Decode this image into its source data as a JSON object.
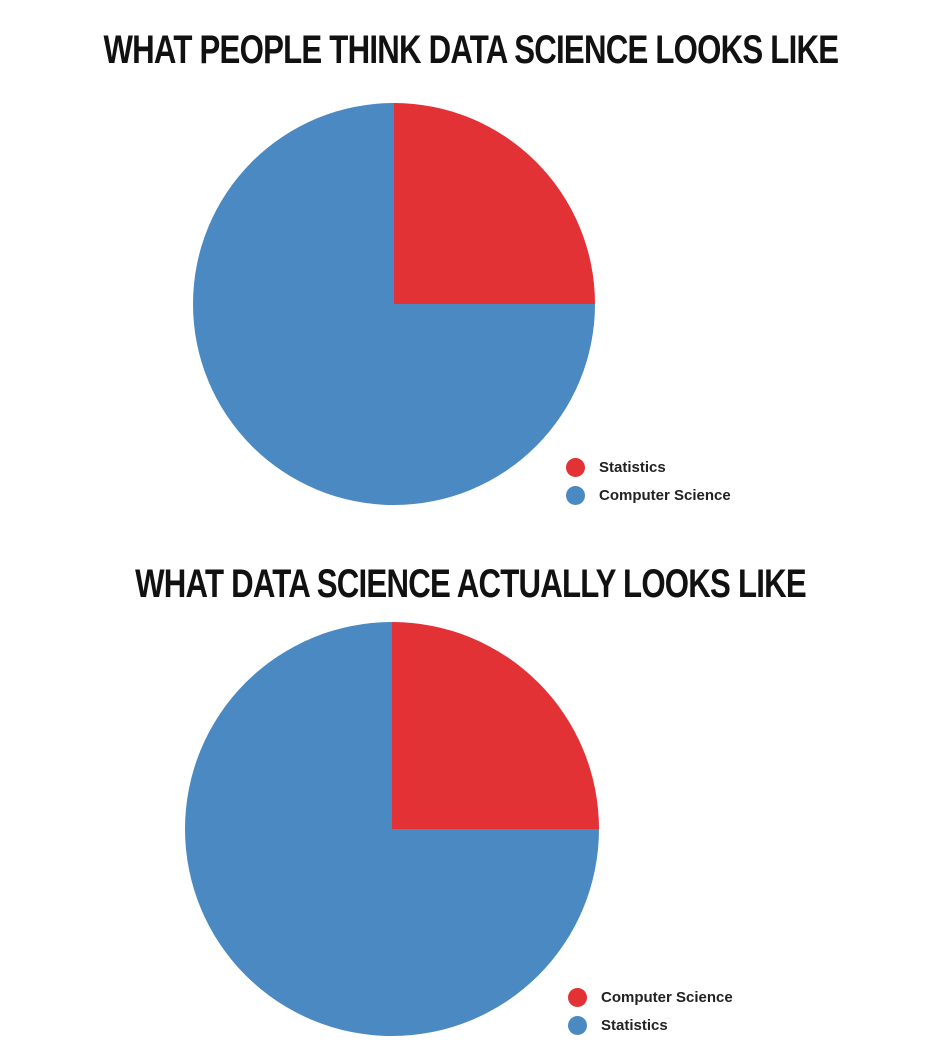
{
  "chart_data": [
    {
      "type": "pie",
      "title": "WHAT PEOPLE THINK DATA SCIENCE LOOKS LIKE",
      "labels": [
        "Statistics",
        "Computer Science"
      ],
      "values": [
        25,
        75
      ],
      "colors": [
        "#e23236",
        "#4a89c2"
      ],
      "start_angle_deg": 0,
      "direction": "clockwise",
      "legend_position": "bottom-right"
    },
    {
      "type": "pie",
      "title": "WHAT DATA SCIENCE ACTUALLY LOOKS LIKE",
      "labels": [
        "Computer Science",
        "Statistics"
      ],
      "values": [
        25,
        75
      ],
      "colors": [
        "#e23236",
        "#4a89c2"
      ],
      "start_angle_deg": 0,
      "direction": "clockwise",
      "legend_position": "bottom-right"
    }
  ]
}
